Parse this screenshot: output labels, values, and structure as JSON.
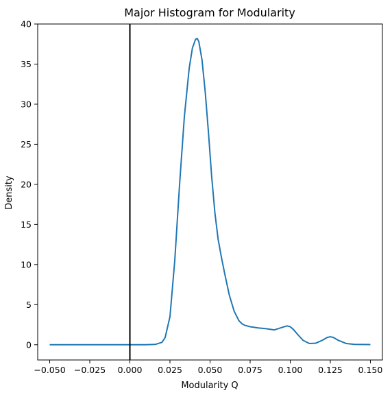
{
  "chart_data": {
    "type": "line",
    "title": "Major Histogram for Modularity",
    "xlabel": "Modularity Q",
    "ylabel": "Density",
    "xlim": [
      -0.0575,
      0.1575
    ],
    "ylim": [
      -1.9,
      40
    ],
    "xticks": [
      -0.05,
      -0.025,
      0.0,
      0.025,
      0.05,
      0.075,
      0.1,
      0.125,
      0.15
    ],
    "xtick_labels": [
      "−0.050",
      "−0.025",
      "0.000",
      "0.025",
      "0.050",
      "0.075",
      "0.100",
      "0.125",
      "0.150"
    ],
    "yticks": [
      0,
      5,
      10,
      15,
      20,
      25,
      30,
      35,
      40
    ],
    "ytick_labels": [
      "0",
      "5",
      "10",
      "15",
      "20",
      "25",
      "30",
      "35",
      "40"
    ],
    "grid": false,
    "reference_line": {
      "x": 0.0,
      "color": "#000000"
    },
    "series": [
      {
        "color": "#1f77b4",
        "x": [
          -0.05,
          -0.03,
          -0.01,
          0.0,
          0.01,
          0.016,
          0.02,
          0.022,
          0.025,
          0.028,
          0.031,
          0.034,
          0.037,
          0.039,
          0.041,
          0.042,
          0.043,
          0.045,
          0.047,
          0.049,
          0.051,
          0.053,
          0.055,
          0.057,
          0.059,
          0.062,
          0.065,
          0.068,
          0.07,
          0.072,
          0.075,
          0.08,
          0.085,
          0.09,
          0.094,
          0.098,
          0.1,
          0.102,
          0.105,
          0.108,
          0.112,
          0.116,
          0.12,
          0.123,
          0.125,
          0.127,
          0.13,
          0.135,
          0.14,
          0.15
        ],
        "values": [
          0,
          0,
          0,
          0,
          0,
          0.05,
          0.3,
          0.9,
          3.5,
          10.5,
          20,
          28.5,
          34.5,
          37,
          38.1,
          38.2,
          37.8,
          35.5,
          31.5,
          26.5,
          21,
          16.5,
          13.2,
          11,
          9,
          6.2,
          4.2,
          3.0,
          2.6,
          2.4,
          2.25,
          2.1,
          2.0,
          1.85,
          2.1,
          2.35,
          2.25,
          1.9,
          1.2,
          0.55,
          0.15,
          0.2,
          0.55,
          0.9,
          1.0,
          0.9,
          0.55,
          0.15,
          0.05,
          0.02
        ]
      }
    ]
  }
}
